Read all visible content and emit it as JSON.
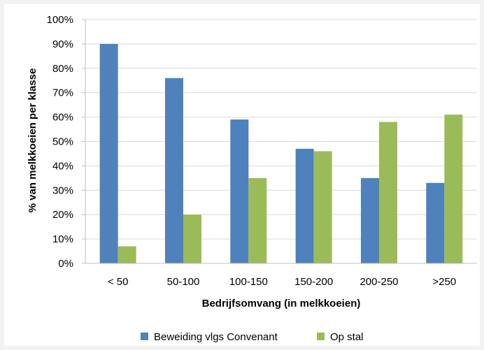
{
  "chart_data": {
    "type": "bar",
    "title": "",
    "xlabel": "Bedrijfsomvang (in melkkoeien)",
    "ylabel": "% van melkkoeien per klasse",
    "categories": [
      "< 50",
      "50-100",
      "100-150",
      "150-200",
      "200-250",
      ">250"
    ],
    "ylim": [
      0,
      100
    ],
    "yticks": [
      0,
      10,
      20,
      30,
      40,
      50,
      60,
      70,
      80,
      90,
      100
    ],
    "ytick_labels": [
      "0%",
      "10%",
      "20%",
      "30%",
      "40%",
      "50%",
      "60%",
      "70%",
      "80%",
      "90%",
      "100%"
    ],
    "grid": true,
    "legend_position": "bottom",
    "series": [
      {
        "name": "Beweiding vlgs Convenant",
        "color": "#4f81bd",
        "values": [
          90,
          76,
          59,
          47,
          35,
          33
        ]
      },
      {
        "name": "Op stal",
        "color": "#9bbb59",
        "values": [
          7,
          20,
          35,
          46,
          58,
          61
        ]
      }
    ]
  }
}
